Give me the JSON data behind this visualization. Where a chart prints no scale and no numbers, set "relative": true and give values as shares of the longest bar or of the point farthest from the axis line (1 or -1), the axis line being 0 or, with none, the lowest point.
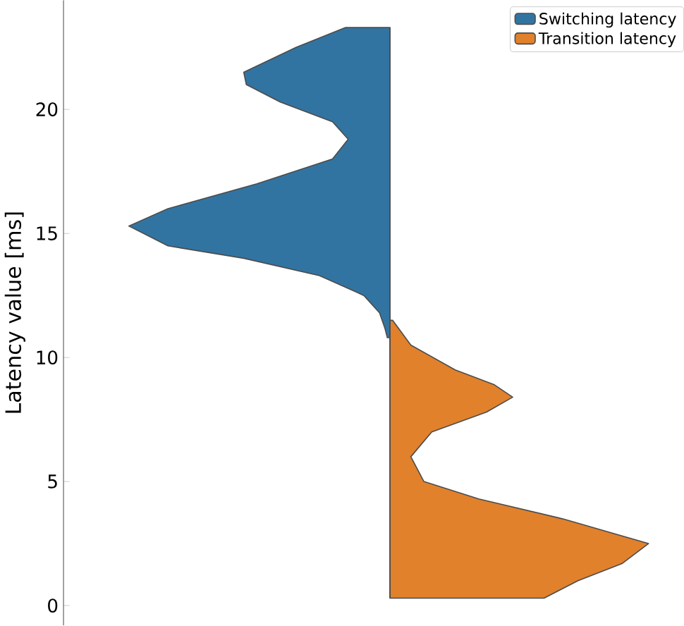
{
  "chart_data": {
    "type": "area",
    "orientation": "horizontal",
    "relative": true,
    "ylabel": "Latency value [ms]",
    "ylim": [
      -0.8,
      24.4
    ],
    "yticks": [
      0,
      5,
      10,
      15,
      20
    ],
    "legend": "top right",
    "grid": false,
    "series": [
      {
        "name": "Switching latency",
        "color": "#3274a1",
        "x": [
          23.3,
          22.5,
          21.5,
          21.0,
          20.3,
          19.5,
          18.8,
          18.0,
          17.0,
          16.0,
          15.3,
          14.5,
          14.0,
          13.3,
          12.5,
          11.8,
          11.2,
          10.8
        ],
        "values": [
          -0.17,
          -0.36,
          -0.56,
          -0.55,
          -0.42,
          -0.22,
          -0.16,
          -0.22,
          -0.51,
          -0.85,
          -1,
          -0.85,
          -0.56,
          -0.27,
          -0.1,
          -0.04,
          -0.02,
          -0.01
        ]
      },
      {
        "name": "Transition latency",
        "color": "#e1812c",
        "x": [
          11.5,
          10.5,
          9.5,
          8.9,
          8.4,
          7.8,
          7.0,
          6.0,
          5.0,
          4.3,
          3.5,
          2.5,
          1.7,
          1.0,
          0.3
        ],
        "values": [
          0.01,
          0.08,
          0.25,
          0.4,
          0.47,
          0.37,
          0.16,
          0.08,
          0.13,
          0.34,
          0.66,
          0.99,
          0.89,
          0.72,
          0.59
        ]
      }
    ]
  }
}
